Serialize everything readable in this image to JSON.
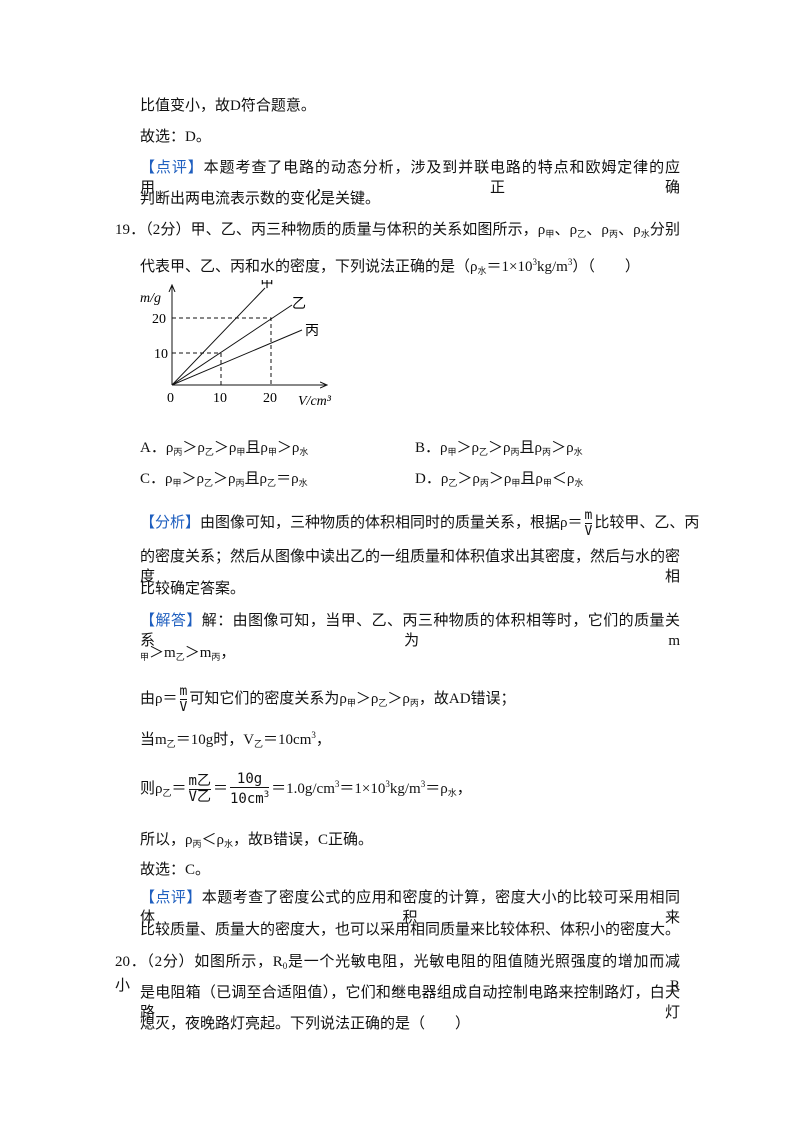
{
  "lines": [
    [
      "比值变小，故D符合题意。"
    ],
    [
      "故选：D。"
    ],
    [
      "【点评】",
      "本题考查了电路的动态分析，涉及到并联电路的特点和欧姆定律的应用，正确"
    ],
    [
      "判断出两电流表示数的变化是关键。"
    ],
    [
      "19．",
      "（2分）甲、乙、丙三种物质的质量与体积的关系如图所示，ρ",
      "甲",
      "、ρ",
      "乙",
      "、ρ",
      "丙",
      "、ρ",
      "水",
      "分别"
    ],
    [
      "代表甲、乙、丙和水的密度，下列说法正确的是（ρ",
      "水",
      "＝1×10",
      "3",
      "kg/m",
      "3",
      "）（　　）"
    ],
    [
      "【分析】",
      "由图像可知，三种物质的体积相同时的质量关系，根据ρ＝",
      "m",
      "V",
      "比较甲、乙、丙"
    ],
    [
      "的密度关系；然后从图像中读出乙的一组质量和体积值求出其密度，然后与水的密度相"
    ],
    [
      "比较确定答案。"
    ],
    [
      "【解答】",
      "解：由图像可知，当甲、乙、丙三种物质的体积相等时，它们的质量关系为m"
    ],
    [
      "甲",
      "＞m",
      "乙",
      "＞m",
      "丙",
      "，"
    ],
    [
      "由ρ＝",
      "m",
      "V",
      "可知它们的密度关系为ρ",
      "甲",
      "＞ρ",
      "乙",
      "＞ρ",
      "丙",
      "，故AD错误；"
    ],
    [
      "当m",
      "乙",
      "＝10g时，V",
      "乙",
      "＝10cm",
      "3",
      "，"
    ],
    [
      "则ρ",
      "乙",
      "＝",
      "m",
      "乙",
      "V",
      "乙",
      "＝",
      "10g",
      "10cm",
      "3",
      "＝1.0g/cm",
      "3",
      "＝1×10",
      "3",
      "kg/m",
      "3",
      "＝ρ",
      "水",
      "，"
    ],
    [
      "所以，ρ",
      "丙",
      "＜ρ",
      "水",
      "，故B错误，C正确。"
    ],
    [
      "故选：C。"
    ],
    [
      "【点评】",
      "本题考查了密度公式的应用和密度的计算，密度大小的比较可采用相同体积来"
    ],
    [
      "比较质量、质量大的密度大，也可以采用相同质量来比较体积、体积小的密度大。"
    ],
    [
      "20．",
      "（2分）如图所示，R",
      "0",
      "是一个光敏电阻，光敏电阻的阻值随光照强度的增加而减小。R"
    ],
    [
      "是电阻箱（已调至合适阻值），它们和继电器组成自动控制电路来控制路灯，白天路灯"
    ],
    [
      "熄灭，夜晚路灯亮起。下列说法正确的是（　　）"
    ]
  ],
  "graph": {
    "y_label": "m/g",
    "x_label": "V/cm³",
    "origin": "0",
    "x_ticks": [
      "10",
      "20"
    ],
    "y_ticks": [
      "10",
      "20"
    ],
    "line_labels": [
      "甲",
      "乙",
      "丙"
    ]
  },
  "options": [
    [
      "A．ρ",
      "丙",
      "＞ρ",
      "乙",
      "＞ρ",
      "甲",
      "且ρ",
      "甲",
      "＞ρ",
      "水"
    ],
    [
      "B．ρ",
      "甲",
      "＞ρ",
      "乙",
      "＞ρ",
      "丙",
      "且ρ",
      "丙",
      "＞ρ",
      "水"
    ],
    [
      "C．ρ",
      "甲",
      "＞ρ",
      "乙",
      "＞ρ",
      "丙",
      "且ρ",
      "乙",
      "＝ρ",
      "水"
    ],
    [
      "D．ρ",
      "乙",
      "＞ρ",
      "丙",
      "＞ρ",
      "甲",
      "且ρ",
      "甲",
      "＜ρ",
      "水"
    ]
  ]
}
